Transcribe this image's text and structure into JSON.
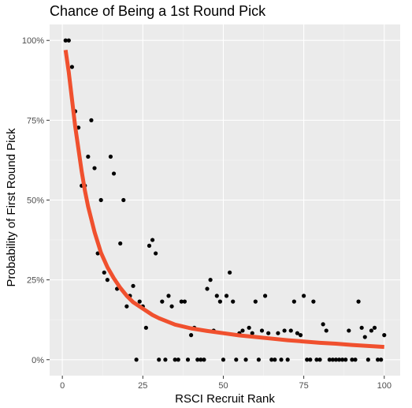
{
  "chart_data": {
    "type": "scatter",
    "title": "Chance of Being a 1st Round Pick",
    "xlabel": "RSCI Recruit Rank",
    "ylabel": "Probability of First Round Pick",
    "xlim": [
      -3.95,
      104.95
    ],
    "ylim": [
      -0.05,
      1.05
    ],
    "x_ticks": [
      0,
      25,
      50,
      75,
      100
    ],
    "x_tick_labels": [
      "0",
      "25",
      "50",
      "75",
      "100"
    ],
    "y_ticks": [
      0,
      0.25,
      0.5,
      0.75,
      1
    ],
    "y_tick_labels": [
      "0%",
      "25%",
      "50%",
      "75%",
      "100%"
    ],
    "grid": true,
    "legend": "none",
    "colors": {
      "panel": "#ebebeb",
      "grid_major": "#ffffff",
      "grid_minor": "#f5f5f5",
      "points": "#000000",
      "curve": "#f0502e"
    },
    "points": {
      "x": [
        1,
        2,
        3,
        4,
        5,
        6,
        7,
        8,
        9,
        10,
        11,
        12,
        13,
        14,
        15,
        16,
        17,
        18,
        19,
        20,
        21,
        22,
        23,
        24,
        25,
        26,
        27,
        28,
        29,
        30,
        31,
        32,
        33,
        34,
        35,
        36,
        37,
        38,
        39,
        40,
        41,
        42,
        43,
        44,
        45,
        46,
        47,
        48,
        49,
        50,
        51,
        52,
        53,
        54,
        55,
        56,
        57,
        58,
        59,
        60,
        61,
        62,
        63,
        64,
        65,
        66,
        67,
        68,
        69,
        70,
        71,
        72,
        73,
        74,
        75,
        76,
        77,
        78,
        79,
        80,
        81,
        82,
        83,
        84,
        85,
        86,
        87,
        88,
        89,
        90,
        91,
        92,
        93,
        94,
        95,
        96,
        97,
        98,
        99,
        100
      ],
      "y": [
        1.0,
        1.0,
        0.917,
        0.778,
        0.727,
        0.545,
        0.545,
        0.636,
        0.75,
        0.6,
        0.333,
        0.5,
        0.273,
        0.25,
        0.636,
        0.583,
        0.222,
        0.364,
        0.5,
        0.167,
        0.2,
        0.231,
        0.0,
        0.182,
        0.167,
        0.1,
        0.357,
        0.375,
        0.333,
        0.0,
        0.182,
        0.0,
        0.2,
        0.167,
        0.0,
        0.0,
        0.182,
        0.182,
        0.0,
        0.077,
        0.1,
        0.0,
        0.0,
        0.0,
        0.222,
        0.25,
        0.091,
        0.2,
        0.182,
        0.0,
        0.2,
        0.273,
        0.182,
        0.0,
        0.083,
        0.091,
        0.0,
        0.1,
        0.083,
        0.182,
        0.0,
        0.091,
        0.2,
        0.083,
        0.0,
        0.0,
        0.083,
        0.0,
        0.091,
        0.0,
        0.091,
        0.182,
        0.083,
        0.077,
        0.2,
        0.0,
        0.0,
        0.182,
        0.0,
        0.0,
        0.111,
        0.091,
        0.0,
        0.0,
        0.0,
        0.0,
        0.0,
        0.0,
        0.091,
        0.0,
        0.0,
        0.182,
        0.1,
        0.071,
        0.0,
        0.091,
        0.1,
        0.0,
        0.0,
        0.077
      ]
    },
    "fit_curve": {
      "x": [
        1,
        2,
        3,
        4,
        5,
        6,
        7,
        8,
        10,
        12,
        14,
        16,
        18,
        20,
        22,
        25,
        28,
        30,
        35,
        40,
        45,
        50,
        55,
        60,
        65,
        70,
        75,
        80,
        85,
        90,
        95,
        100
      ],
      "y": [
        0.97,
        0.9,
        0.815,
        0.73,
        0.66,
        0.59,
        0.53,
        0.48,
        0.4,
        0.335,
        0.29,
        0.255,
        0.225,
        0.2,
        0.18,
        0.16,
        0.14,
        0.13,
        0.11,
        0.098,
        0.09,
        0.083,
        0.076,
        0.071,
        0.066,
        0.061,
        0.057,
        0.053,
        0.05,
        0.046,
        0.043,
        0.04
      ]
    }
  }
}
